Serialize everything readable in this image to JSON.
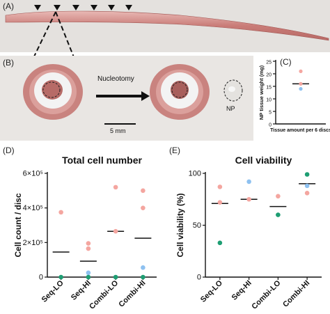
{
  "figure": {
    "panels": {
      "a": "(A)",
      "b": "(B)",
      "c": "(C)",
      "d": "(D)",
      "e": "(E)"
    },
    "photo_b": {
      "arrow_label": "Nucleotomy",
      "scale_label": "5 mm",
      "np_label": "NP"
    }
  },
  "chart_data": [
    {
      "id": "C",
      "type": "scatter",
      "title": "",
      "ylabel": "NP tissue weight (mg)",
      "xlabel": "",
      "categories": [
        "Tissue amount per 6 discs"
      ],
      "ylim": [
        0,
        25
      ],
      "yticks": [
        0,
        5,
        10,
        15,
        20,
        25
      ],
      "points": [
        {
          "cat": 0,
          "y": 21,
          "color": "#f4a6a0"
        },
        {
          "cat": 0,
          "y": 16,
          "color": "#f4a6a0"
        },
        {
          "cat": 0,
          "y": 14,
          "color": "#8ec1f0"
        }
      ],
      "means": [
        16
      ]
    },
    {
      "id": "D",
      "type": "scatter",
      "title": "Total cell number",
      "ylabel": "Cell count / disc",
      "xlabel": "",
      "categories": [
        "Seq-LO",
        "Seq-HI",
        "Combi-LO",
        "Combi-HI"
      ],
      "ylim": [
        0,
        600000
      ],
      "yticks": [
        0,
        200000,
        400000,
        600000
      ],
      "ytick_labels": [
        "0",
        "2×10⁵",
        "4×10⁵",
        "6×10⁵"
      ],
      "points": [
        {
          "cat": 0,
          "y": 375000,
          "color": "#f4a6a0"
        },
        {
          "cat": 0,
          "y": 0,
          "color": "#1e9e73"
        },
        {
          "cat": 1,
          "y": 195000,
          "color": "#f4a6a0"
        },
        {
          "cat": 1,
          "y": 165000,
          "color": "#f4a6a0"
        },
        {
          "cat": 1,
          "y": 25000,
          "color": "#8ec1f0"
        },
        {
          "cat": 1,
          "y": 0,
          "color": "#1e9e73"
        },
        {
          "cat": 2,
          "y": 520000,
          "color": "#f4a6a0"
        },
        {
          "cat": 2,
          "y": 265000,
          "color": "#f4a6a0"
        },
        {
          "cat": 2,
          "y": 0,
          "color": "#1e9e73"
        },
        {
          "cat": 3,
          "y": 500000,
          "color": "#f4a6a0"
        },
        {
          "cat": 3,
          "y": 400000,
          "color": "#f4a6a0"
        },
        {
          "cat": 3,
          "y": 55000,
          "color": "#8ec1f0"
        },
        {
          "cat": 3,
          "y": 0,
          "color": "#1e9e73"
        }
      ],
      "means": [
        145000,
        92000,
        265000,
        225000
      ]
    },
    {
      "id": "E",
      "type": "scatter",
      "title": "Cell viability",
      "ylabel": "Cell viability (%)",
      "xlabel": "",
      "categories": [
        "Seq-LO",
        "Seq-HI",
        "Combi-LO",
        "Combi-HI"
      ],
      "ylim": [
        0,
        100
      ],
      "yticks": [
        0,
        50,
        100
      ],
      "ytick_labels": [
        "0",
        "50",
        "100"
      ],
      "points": [
        {
          "cat": 0,
          "y": 87,
          "color": "#f4a6a0"
        },
        {
          "cat": 0,
          "y": 72,
          "color": "#f4a6a0"
        },
        {
          "cat": 0,
          "y": 33,
          "color": "#1e9e73"
        },
        {
          "cat": 1,
          "y": 92,
          "color": "#8ec1f0"
        },
        {
          "cat": 1,
          "y": 75,
          "color": "#f4a6a0"
        },
        {
          "cat": 2,
          "y": 78,
          "color": "#f4a6a0"
        },
        {
          "cat": 2,
          "y": 60,
          "color": "#1e9e73"
        },
        {
          "cat": 3,
          "y": 99,
          "color": "#1e9e73"
        },
        {
          "cat": 3,
          "y": 88,
          "color": "#8ec1f0"
        },
        {
          "cat": 3,
          "y": 81,
          "color": "#f4a6a0"
        }
      ],
      "means": [
        71,
        75,
        68,
        90
      ]
    }
  ]
}
